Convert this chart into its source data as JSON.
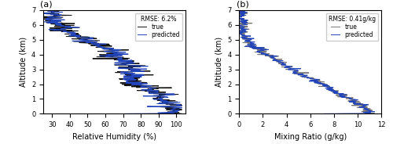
{
  "panel_a": {
    "label": "(a)",
    "xlabel": "Relative Humidity (%)",
    "ylabel": "Altitude (km)",
    "xlim": [
      25,
      105
    ],
    "ylim": [
      0,
      7
    ],
    "xticks": [
      30,
      40,
      50,
      60,
      70,
      80,
      90,
      100
    ],
    "yticks": [
      0,
      1,
      2,
      3,
      4,
      5,
      6,
      7
    ],
    "legend_true": "true",
    "legend_pred": "predicted",
    "legend_rmse": "RMSE: 6.2%",
    "true_color": "#111111",
    "pred_color": "#2244bb",
    "linewidth_true": 0.7,
    "linewidth_pred": 0.7
  },
  "panel_b": {
    "label": "(b)",
    "xlabel": "Mixing Ratio (g/kg)",
    "ylabel": "Altitude (km)",
    "xlim": [
      0,
      12
    ],
    "ylim": [
      0,
      7
    ],
    "xticks": [
      0,
      2,
      4,
      6,
      8,
      10,
      12
    ],
    "yticks": [
      0,
      1,
      2,
      3,
      4,
      5,
      6,
      7
    ],
    "legend_true": "true",
    "legend_pred": "predicted",
    "legend_rmse": "RMSE: 0.41g/kg",
    "true_color": "#777777",
    "pred_color": "#2244bb",
    "linewidth_true": 0.7,
    "linewidth_pred": 0.7
  },
  "figsize": [
    5.0,
    1.84
  ],
  "dpi": 100
}
